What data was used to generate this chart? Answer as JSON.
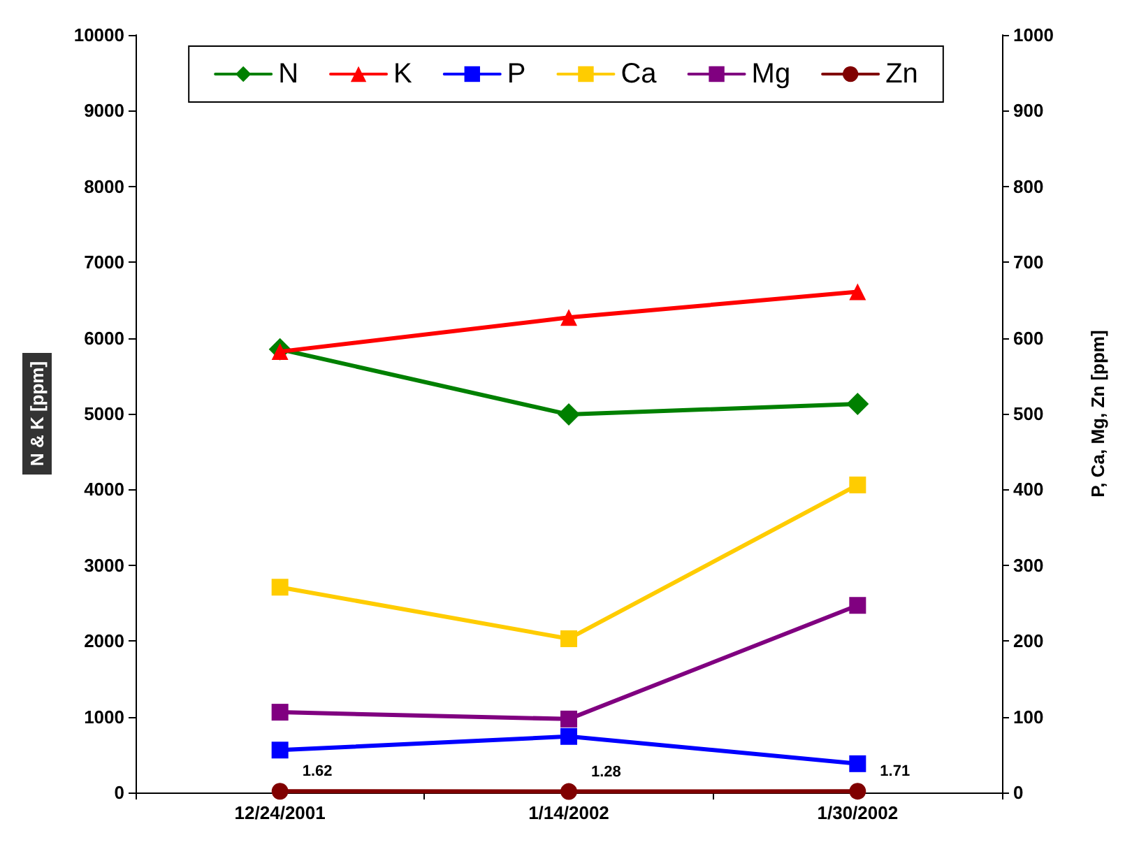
{
  "chart_data": {
    "type": "line",
    "categories": [
      "12/24/2001",
      "1/14/2002",
      "1/30/2002"
    ],
    "ylabel": "N & K [ppm]",
    "y2label": "P, Ca, Mg, Zn [ppm]",
    "ylim": [
      0,
      10000
    ],
    "yticks": [
      0,
      1000,
      2000,
      3000,
      4000,
      5000,
      6000,
      7000,
      8000,
      9000,
      10000
    ],
    "y2lim": [
      0,
      1000
    ],
    "y2ticks": [
      0,
      100,
      200,
      300,
      400,
      500,
      600,
      700,
      800,
      900,
      1000
    ],
    "grid": false,
    "legend": "top",
    "line_style": "solid",
    "series": [
      {
        "name": "N",
        "color": "#008000",
        "marker": "diamond",
        "values": [
          5850,
          4990,
          5130
        ]
      },
      {
        "name": "K",
        "color": "#ff0000",
        "marker": "triangle",
        "values": [
          5820,
          6270,
          6610
        ]
      },
      {
        "name": "P",
        "color": "#0000ff",
        "marker": "square",
        "axis": "y2",
        "values": [
          56,
          74,
          38
        ]
      },
      {
        "name": "Ca",
        "color": "#ffcc00",
        "marker": "square",
        "axis": "y2",
        "values": [
          271,
          203,
          406
        ]
      },
      {
        "name": "Mg",
        "color": "#800080",
        "marker": "square",
        "axis": "y2",
        "values": [
          106,
          97,
          247
        ]
      },
      {
        "name": "Zn",
        "color": "#800000",
        "marker": "circle",
        "axis": "y2",
        "values": [
          1.62,
          1.28,
          1.71
        ],
        "value_labels": [
          "1.62",
          "1.28",
          "1.71"
        ]
      }
    ]
  }
}
